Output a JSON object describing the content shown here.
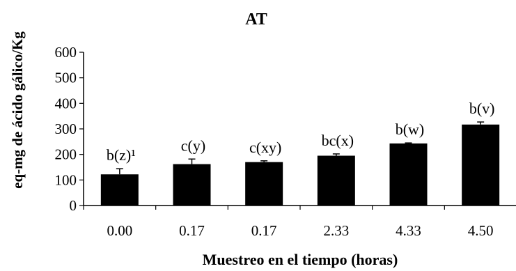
{
  "chart_data": {
    "type": "bar",
    "title": "AT",
    "xlabel": "Muestreo en el tiempo (horas)",
    "ylabel": "eq-mg de ácido gálico/Kg",
    "ylim": [
      0,
      600
    ],
    "yticks": [
      "0",
      "100",
      "200",
      "300",
      "400",
      "500",
      "600"
    ],
    "categories": [
      "0.00",
      "0.17",
      "0.17",
      "2.33",
      "4.33",
      "4.50"
    ],
    "values": [
      122,
      162,
      170,
      195,
      243,
      317
    ],
    "errors": [
      22,
      20,
      5,
      7,
      2,
      10
    ],
    "annotations": [
      "b(z)¹",
      "c(y)",
      "c(xy)",
      "bc(x)",
      "b(w)",
      "b(v)"
    ],
    "grid": false,
    "legend": "none",
    "bar_color": "#000000"
  }
}
